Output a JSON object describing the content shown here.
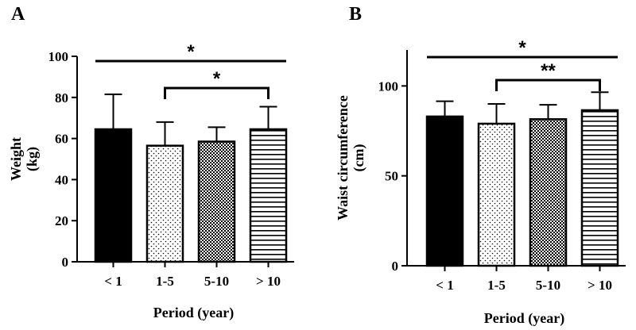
{
  "chart_data": [
    {
      "panel": "A",
      "type": "bar",
      "categories": [
        "< 1",
        "1-5",
        "5-10",
        "> 10"
      ],
      "values": [
        64.5,
        56.5,
        58.5,
        64.5
      ],
      "errors": [
        17,
        11.5,
        7,
        11
      ],
      "ylabel": [
        "Weight",
        "(kg)"
      ],
      "xlabel": "Period (year)",
      "ylim": [
        0,
        100
      ],
      "yticks": [
        0,
        20,
        40,
        60,
        80,
        100
      ],
      "patterns": [
        "solid",
        "dots",
        "checker",
        "hlines"
      ],
      "significance": [
        {
          "from": 0,
          "to": 3,
          "label": "*"
        },
        {
          "from": 1,
          "to": 3,
          "label": "*"
        }
      ]
    },
    {
      "panel": "B",
      "type": "bar",
      "categories": [
        "< 1",
        "1-5",
        "5-10",
        "> 10"
      ],
      "values": [
        83,
        79,
        81.5,
        86.5
      ],
      "errors": [
        8.5,
        11,
        8,
        10
      ],
      "ylabel": [
        "Waist circumference",
        "(cm)"
      ],
      "xlabel": "Period (year)",
      "ylim": [
        0,
        120
      ],
      "yticks": [
        0,
        50,
        100
      ],
      "patterns": [
        "solid",
        "dots",
        "checker",
        "hlines"
      ],
      "significance": [
        {
          "from": 0,
          "to": 3,
          "label": "*"
        },
        {
          "from": 1,
          "to": 3,
          "label": "**"
        }
      ]
    }
  ]
}
